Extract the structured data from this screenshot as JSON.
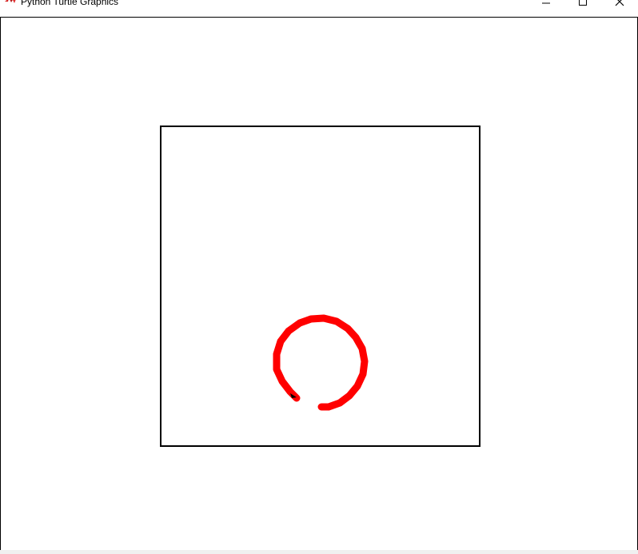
{
  "window": {
    "title": "Python Turtle Graphics",
    "icon": "turtle-feather-icon",
    "controls": [
      "minimize-icon",
      "maximize-icon",
      "close-icon"
    ]
  },
  "canvas": {
    "background": "#ffffff",
    "square": {
      "stroke": "#000000"
    },
    "arc": {
      "stroke": "#ff0000"
    },
    "turtle_cursor": {
      "fill": "#000000"
    }
  }
}
